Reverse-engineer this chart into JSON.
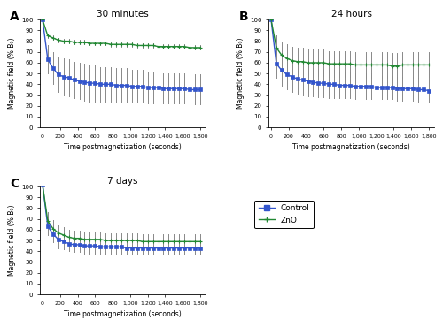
{
  "title_A": "30 minutes",
  "title_B": "24 hours",
  "title_C": "7 days",
  "xlabel": "Time postmagnetization (seconds)",
  "ylabel": "Magnetic field (% B₀)",
  "label_A": "A",
  "label_B": "B",
  "label_C": "C",
  "legend_control": "Control",
  "legend_zno": "ZnO",
  "control_color": "#3355cc",
  "zno_color": "#228833",
  "error_color": "#888888",
  "x_ticks": [
    0,
    200,
    400,
    600,
    800,
    1000,
    1200,
    1400,
    1600,
    1800
  ],
  "x_tick_labels": [
    "0",
    "200",
    "400",
    "600",
    "800",
    "1,000",
    "1,200",
    "1,400",
    "1,600",
    "1,800"
  ],
  "ylim": [
    0,
    100
  ],
  "yticks": [
    0,
    10,
    20,
    30,
    40,
    50,
    60,
    70,
    80,
    90,
    100
  ],
  "time_points": [
    0,
    60,
    120,
    180,
    240,
    300,
    360,
    420,
    480,
    540,
    600,
    660,
    720,
    780,
    840,
    900,
    960,
    1020,
    1080,
    1140,
    1200,
    1260,
    1320,
    1380,
    1440,
    1500,
    1560,
    1620,
    1680,
    1740,
    1800
  ],
  "A_control_y": [
    100,
    63,
    55,
    49,
    47,
    46,
    44,
    43,
    42,
    41,
    41,
    40,
    40,
    40,
    39,
    39,
    39,
    38,
    38,
    38,
    37,
    37,
    37,
    36,
    36,
    36,
    36,
    36,
    35,
    35,
    35
  ],
  "A_control_err": [
    0,
    13,
    15,
    16,
    17,
    17,
    17,
    17,
    17,
    17,
    17,
    16,
    16,
    16,
    16,
    16,
    16,
    15,
    15,
    15,
    15,
    15,
    15,
    14,
    14,
    14,
    14,
    14,
    14,
    14,
    14
  ],
  "A_zno_y": [
    100,
    85,
    83,
    81,
    80,
    80,
    79,
    79,
    79,
    78,
    78,
    78,
    78,
    77,
    77,
    77,
    77,
    77,
    76,
    76,
    76,
    76,
    75,
    75,
    75,
    75,
    75,
    75,
    74,
    74,
    74
  ],
  "A_zno_err": [
    0,
    2,
    2,
    2,
    2,
    2,
    2,
    2,
    2,
    2,
    2,
    2,
    2,
    2,
    2,
    2,
    2,
    2,
    2,
    2,
    2,
    2,
    2,
    2,
    2,
    2,
    2,
    2,
    2,
    2,
    2
  ],
  "B_control_y": [
    100,
    59,
    53,
    49,
    47,
    45,
    44,
    43,
    42,
    41,
    41,
    40,
    40,
    39,
    39,
    39,
    38,
    38,
    38,
    38,
    37,
    37,
    37,
    37,
    36,
    36,
    36,
    36,
    35,
    35,
    34
  ],
  "B_control_err": [
    0,
    13,
    14,
    14,
    14,
    14,
    14,
    14,
    13,
    13,
    13,
    13,
    13,
    12,
    12,
    12,
    12,
    12,
    12,
    12,
    12,
    11,
    11,
    11,
    11,
    11,
    11,
    11,
    11,
    11,
    11
  ],
  "B_zno_y": [
    100,
    74,
    67,
    64,
    62,
    61,
    61,
    60,
    60,
    60,
    60,
    59,
    59,
    59,
    59,
    59,
    58,
    58,
    58,
    58,
    58,
    58,
    58,
    57,
    57,
    58,
    58,
    58,
    58,
    58,
    58
  ],
  "B_zno_err": [
    0,
    11,
    12,
    13,
    13,
    13,
    13,
    13,
    13,
    12,
    12,
    12,
    12,
    12,
    12,
    12,
    12,
    12,
    12,
    12,
    12,
    12,
    12,
    12,
    12,
    12,
    12,
    12,
    12,
    12,
    12
  ],
  "C_control_y": [
    102,
    63,
    56,
    51,
    49,
    47,
    46,
    46,
    45,
    45,
    45,
    44,
    44,
    44,
    44,
    44,
    43,
    43,
    43,
    43,
    43,
    43,
    43,
    43,
    43,
    43,
    43,
    43,
    43,
    43,
    43
  ],
  "C_control_err": [
    0,
    8,
    8,
    8,
    7,
    7,
    7,
    7,
    7,
    7,
    7,
    7,
    7,
    7,
    7,
    7,
    6,
    6,
    6,
    6,
    6,
    6,
    6,
    6,
    6,
    6,
    6,
    6,
    6,
    6,
    6
  ],
  "C_zno_y": [
    102,
    68,
    61,
    57,
    55,
    53,
    52,
    52,
    51,
    51,
    51,
    51,
    50,
    50,
    50,
    50,
    50,
    50,
    50,
    49,
    49,
    49,
    49,
    49,
    49,
    49,
    49,
    49,
    49,
    49,
    49
  ],
  "C_zno_err": [
    0,
    8,
    8,
    7,
    7,
    7,
    7,
    7,
    7,
    7,
    7,
    7,
    7,
    7,
    7,
    7,
    7,
    7,
    7,
    7,
    7,
    7,
    7,
    7,
    7,
    7,
    7,
    7,
    7,
    7,
    7
  ]
}
